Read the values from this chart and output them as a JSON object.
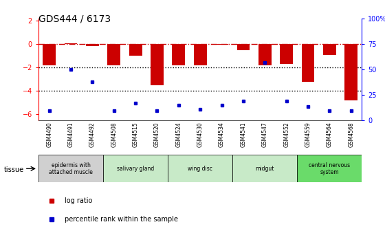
{
  "title": "GDS444 / 6173",
  "samples": [
    "GSM4490",
    "GSM4491",
    "GSM4492",
    "GSM4508",
    "GSM4515",
    "GSM4520",
    "GSM4524",
    "GSM4530",
    "GSM4534",
    "GSM4541",
    "GSM4547",
    "GSM4552",
    "GSM4559",
    "GSM4564",
    "GSM4568"
  ],
  "log_ratio": [
    -1.8,
    0.05,
    -0.15,
    -1.8,
    -1.0,
    -3.5,
    -1.8,
    -1.8,
    -0.05,
    -0.5,
    -1.8,
    -1.7,
    -3.2,
    -0.9,
    -4.8
  ],
  "percentile_rank": [
    4,
    48,
    35,
    4,
    12,
    4,
    10,
    5,
    10,
    14,
    55,
    14,
    8,
    4,
    4
  ],
  "tissue_groups": [
    {
      "label": "epidermis with\nattached muscle",
      "start": 0,
      "end": 3,
      "color": "#d0d0d0"
    },
    {
      "label": "salivary gland",
      "start": 3,
      "end": 6,
      "color": "#c8eac8"
    },
    {
      "label": "wing disc",
      "start": 6,
      "end": 9,
      "color": "#c8eac8"
    },
    {
      "label": "midgut",
      "start": 9,
      "end": 12,
      "color": "#c8eac8"
    },
    {
      "label": "central nervous\nsystem",
      "start": 12,
      "end": 15,
      "color": "#6adb6a"
    }
  ],
  "bar_color": "#cc0000",
  "dot_color": "#0000cc",
  "ylim_left": [
    -6.5,
    2.2
  ],
  "ylim_right": [
    0,
    100
  ],
  "hline_0_color": "#cc0000",
  "hline_dotted_color": "#000000"
}
